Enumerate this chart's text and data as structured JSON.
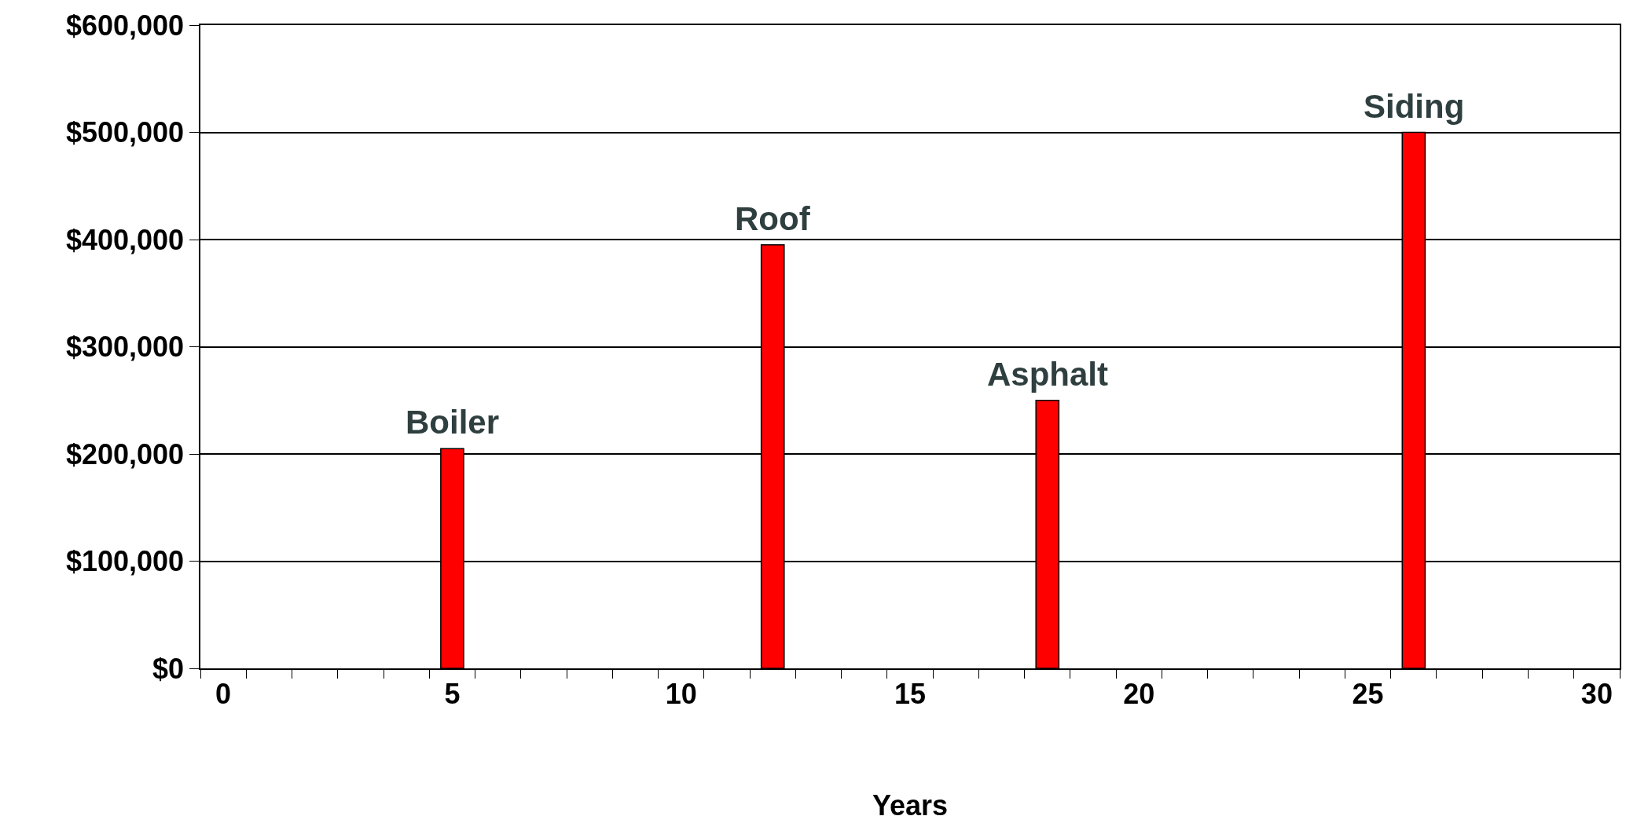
{
  "chart_data": {
    "type": "bar",
    "xlabel": "Years",
    "x": [
      5,
      12,
      18,
      26
    ],
    "values": [
      205000,
      395000,
      250000,
      500000
    ],
    "color": "#ff0000",
    "xlim": [
      -0.5,
      30.5
    ],
    "xticks": [
      0,
      5,
      10,
      15,
      20,
      25,
      30,
      {
        "value": -0.5,
        "label": null
      },
      {
        "value": 0.5,
        "label": null
      },
      {
        "value": 1.5,
        "label": null
      },
      {
        "value": 2.5,
        "label": null
      },
      {
        "value": 3.5,
        "label": null
      },
      {
        "value": 4.5,
        "label": null
      },
      {
        "value": 5.5,
        "label": null
      },
      {
        "value": 6.5,
        "label": null
      },
      {
        "value": 7.5,
        "label": null
      },
      {
        "value": 8.5,
        "label": null
      },
      {
        "value": 9.5,
        "label": null
      },
      {
        "value": 10.5,
        "label": null
      },
      {
        "value": 11.5,
        "label": null
      },
      {
        "value": 12.5,
        "label": null
      },
      {
        "value": 13.5,
        "label": null
      },
      {
        "value": 14.5,
        "label": null
      },
      {
        "value": 15.5,
        "label": null
      },
      {
        "value": 16.5,
        "label": null
      },
      {
        "value": 17.5,
        "label": null
      },
      {
        "value": 18.5,
        "label": null
      },
      {
        "value": 19.5,
        "label": null
      },
      {
        "value": 20.5,
        "label": null
      },
      {
        "value": 21.5,
        "label": null
      },
      {
        "value": 22.5,
        "label": null
      },
      {
        "value": 23.5,
        "label": null
      },
      {
        "value": 24.5,
        "label": null
      },
      {
        "value": 25.5,
        "label": null
      },
      {
        "value": 26.5,
        "label": null
      },
      {
        "value": 27.5,
        "label": null
      },
      {
        "value": 28.5,
        "label": null
      },
      {
        "value": 29.5,
        "label": null
      },
      {
        "value": 30.5,
        "label": null
      }
    ],
    "ylim": [
      0,
      600000
    ],
    "yticks": [
      {
        "value": 0,
        "label": "$0"
      },
      {
        "value": 100000,
        "label": "$100,000"
      },
      {
        "value": 200000,
        "label": "$200,000"
      },
      {
        "value": 300000,
        "label": "$300,000"
      },
      {
        "value": 400000,
        "label": "$400,000"
      },
      {
        "value": 500000,
        "label": "$500,000"
      },
      {
        "value": 600000,
        "label": "$600,000"
      }
    ],
    "grid": "y",
    "annotations": [
      {
        "text": "Boiler",
        "x": 5,
        "y": 205000
      },
      {
        "text": "Roof",
        "x": 12,
        "y": 395000
      },
      {
        "text": "Asphalt",
        "x": 18,
        "y": 250000
      },
      {
        "text": "Siding",
        "x": 26,
        "y": 500000
      }
    ]
  }
}
